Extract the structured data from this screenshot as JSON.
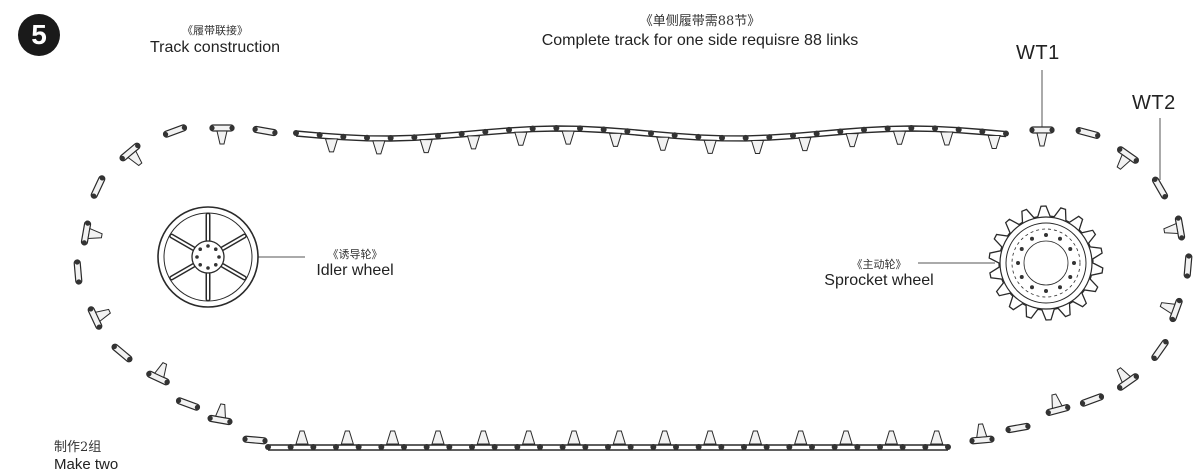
{
  "step": {
    "number": "5"
  },
  "track_construction": {
    "cn": "《履带联接》",
    "en": "Track construction"
  },
  "complete_track": {
    "cn": "《单侧履带需88节》",
    "en": "Complete track for one side requisre 88 links"
  },
  "part_labels": {
    "wt1": "WT1",
    "wt2": "WT2"
  },
  "idler": {
    "cn": "《诱导轮》",
    "en": "Idler wheel"
  },
  "sprocket": {
    "cn": "《主动轮》",
    "en": "Sprocket wheel"
  },
  "make_two": {
    "cn": "制作2组",
    "en": "Make two"
  },
  "colors": {
    "ink": "#2a2a2a",
    "line": "#555555",
    "fill": "#f2f2f2"
  }
}
